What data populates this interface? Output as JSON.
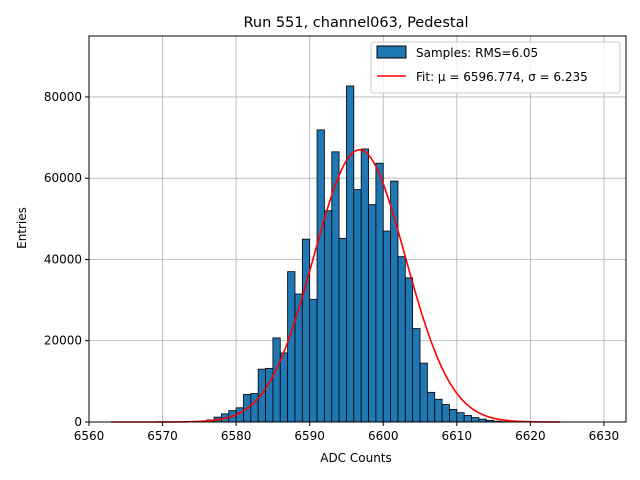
{
  "chart_data": {
    "type": "bar",
    "title": "Run 551, channel063, Pedestal",
    "xlabel": "ADC Counts",
    "ylabel": "Entries",
    "xlim": [
      6560,
      6633
    ],
    "ylim": [
      0,
      95000
    ],
    "grid": true,
    "legend_position": "upper right",
    "x_ticks": [
      6560,
      6570,
      6580,
      6590,
      6600,
      6610,
      6620,
      6630
    ],
    "y_ticks": [
      0,
      20000,
      40000,
      60000,
      80000
    ],
    "series": [
      {
        "name": "Samples: RMS=6.05",
        "kind": "histogram",
        "color": "#1f77b4",
        "edgecolor": "#000000",
        "bin_width": 1,
        "bin_starts": [
          6576,
          6577,
          6578,
          6579,
          6580,
          6581,
          6582,
          6583,
          6584,
          6585,
          6586,
          6587,
          6588,
          6589,
          6590,
          6591,
          6592,
          6593,
          6594,
          6595,
          6596,
          6597,
          6598,
          6599,
          6600,
          6601,
          6602,
          6603,
          6604,
          6605,
          6606,
          6607,
          6608,
          6609,
          6610,
          6611,
          6612,
          6613,
          6614,
          6615,
          6616,
          6617
        ],
        "values": [
          500,
          1200,
          2000,
          2800,
          3500,
          6800,
          7000,
          13000,
          13200,
          20700,
          17000,
          37000,
          31500,
          45000,
          30200,
          71900,
          52000,
          66500,
          45200,
          82700,
          57200,
          67200,
          53500,
          63700,
          47000,
          59300,
          40700,
          35500,
          23000,
          14500,
          7300,
          5600,
          4300,
          3100,
          2300,
          1600,
          1100,
          700,
          400,
          200,
          100,
          50
        ]
      },
      {
        "name": "Fit: μ = 6596.774, σ = 6.235",
        "kind": "gaussian-fit",
        "color": "#ff0000",
        "mu": 6596.774,
        "sigma": 6.235,
        "amplitude": 67000,
        "x_range": [
          6563,
          6624
        ]
      }
    ]
  }
}
